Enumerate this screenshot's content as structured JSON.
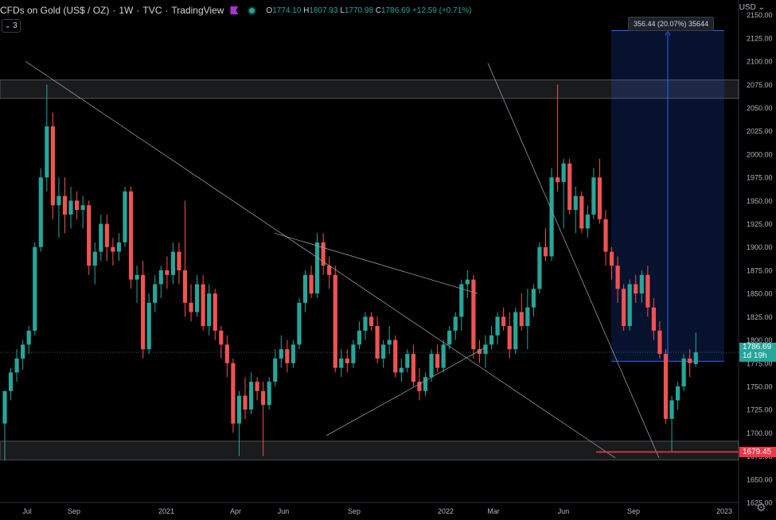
{
  "header": {
    "symbol": "CFDs on Gold (US$ / OZ)",
    "interval": "1W",
    "source": "TVC",
    "platform": "TradingView",
    "ohlc": {
      "o_key": "O",
      "o_val": "1774.10",
      "h_key": "H",
      "h_val": "1807.93",
      "l_key": "L",
      "l_val": "1770.98",
      "c_key": "C",
      "c_val": "1786.69",
      "change": "+12.59 (+0.71%)"
    }
  },
  "indicators_count": "3",
  "currency": "USD",
  "measure_label": "356.44 (20.07%) 35644",
  "last_price": "1786.69",
  "time_to_close": "1d 19h",
  "support_price": "1679.45",
  "colors": {
    "up": "#26a69a",
    "down": "#ef5350",
    "grid": "#1a1a1a",
    "support_line": "#f23645",
    "measure": "#2962ff"
  },
  "icons": [
    "flag-icon",
    "status-dot-icon",
    "chevron-down-icon",
    "gear-icon"
  ],
  "chart_data": {
    "type": "candlestick",
    "ylim": [
      1625,
      2160
    ],
    "y_ticks": [
      1625,
      1650,
      1675,
      1700,
      1725,
      1750,
      1775,
      1800,
      1825,
      1850,
      1875,
      1900,
      1925,
      1950,
      1975,
      2000,
      2025,
      2050,
      2075,
      2100,
      2125,
      2150
    ],
    "x_ticks": [
      "Jul",
      "Sep",
      "2021",
      "Apr",
      "Jun",
      "Sep",
      "2022",
      "Mar",
      "Jun",
      "Sep",
      "2023"
    ],
    "candles": [
      {
        "o": 1710,
        "h": 1745,
        "l": 1670,
        "c": 1745
      },
      {
        "o": 1745,
        "h": 1770,
        "l": 1735,
        "c": 1765
      },
      {
        "o": 1765,
        "h": 1790,
        "l": 1755,
        "c": 1780
      },
      {
        "o": 1780,
        "h": 1800,
        "l": 1768,
        "c": 1795
      },
      {
        "o": 1795,
        "h": 1815,
        "l": 1785,
        "c": 1810
      },
      {
        "o": 1810,
        "h": 1905,
        "l": 1805,
        "c": 1900
      },
      {
        "o": 1900,
        "h": 1985,
        "l": 1895,
        "c": 1975
      },
      {
        "o": 1975,
        "h": 2075,
        "l": 1960,
        "c": 2030
      },
      {
        "o": 2030,
        "h": 2045,
        "l": 1930,
        "c": 1945
      },
      {
        "o": 1945,
        "h": 1975,
        "l": 1910,
        "c": 1955
      },
      {
        "o": 1955,
        "h": 1975,
        "l": 1915,
        "c": 1935
      },
      {
        "o": 1935,
        "h": 1965,
        "l": 1920,
        "c": 1950
      },
      {
        "o": 1950,
        "h": 1960,
        "l": 1930,
        "c": 1940
      },
      {
        "o": 1940,
        "h": 1955,
        "l": 1920,
        "c": 1945
      },
      {
        "o": 1945,
        "h": 1950,
        "l": 1870,
        "c": 1880
      },
      {
        "o": 1880,
        "h": 1905,
        "l": 1860,
        "c": 1895
      },
      {
        "o": 1895,
        "h": 1935,
        "l": 1885,
        "c": 1925
      },
      {
        "o": 1925,
        "h": 1935,
        "l": 1885,
        "c": 1900
      },
      {
        "o": 1900,
        "h": 1910,
        "l": 1880,
        "c": 1895
      },
      {
        "o": 1895,
        "h": 1915,
        "l": 1885,
        "c": 1905
      },
      {
        "o": 1905,
        "h": 1965,
        "l": 1900,
        "c": 1960
      },
      {
        "o": 1960,
        "h": 1965,
        "l": 1855,
        "c": 1865
      },
      {
        "o": 1865,
        "h": 1880,
        "l": 1840,
        "c": 1870
      },
      {
        "o": 1870,
        "h": 1885,
        "l": 1780,
        "c": 1790
      },
      {
        "o": 1790,
        "h": 1850,
        "l": 1785,
        "c": 1840
      },
      {
        "o": 1840,
        "h": 1870,
        "l": 1830,
        "c": 1860
      },
      {
        "o": 1860,
        "h": 1880,
        "l": 1845,
        "c": 1875
      },
      {
        "o": 1875,
        "h": 1890,
        "l": 1855,
        "c": 1870
      },
      {
        "o": 1870,
        "h": 1905,
        "l": 1860,
        "c": 1895
      },
      {
        "o": 1895,
        "h": 1905,
        "l": 1860,
        "c": 1875
      },
      {
        "o": 1875,
        "h": 1950,
        "l": 1825,
        "c": 1840
      },
      {
        "o": 1840,
        "h": 1860,
        "l": 1820,
        "c": 1830
      },
      {
        "o": 1830,
        "h": 1870,
        "l": 1825,
        "c": 1860
      },
      {
        "o": 1860,
        "h": 1870,
        "l": 1810,
        "c": 1815
      },
      {
        "o": 1815,
        "h": 1860,
        "l": 1805,
        "c": 1850
      },
      {
        "o": 1850,
        "h": 1855,
        "l": 1800,
        "c": 1810
      },
      {
        "o": 1810,
        "h": 1815,
        "l": 1780,
        "c": 1795
      },
      {
        "o": 1795,
        "h": 1805,
        "l": 1760,
        "c": 1775
      },
      {
        "o": 1775,
        "h": 1780,
        "l": 1700,
        "c": 1710
      },
      {
        "o": 1710,
        "h": 1745,
        "l": 1675,
        "c": 1740
      },
      {
        "o": 1740,
        "h": 1760,
        "l": 1715,
        "c": 1725
      },
      {
        "o": 1725,
        "h": 1765,
        "l": 1720,
        "c": 1755
      },
      {
        "o": 1755,
        "h": 1760,
        "l": 1735,
        "c": 1745
      },
      {
        "o": 1745,
        "h": 1755,
        "l": 1675,
        "c": 1730
      },
      {
        "o": 1730,
        "h": 1760,
        "l": 1725,
        "c": 1755
      },
      {
        "o": 1755,
        "h": 1790,
        "l": 1750,
        "c": 1780
      },
      {
        "o": 1780,
        "h": 1805,
        "l": 1770,
        "c": 1790
      },
      {
        "o": 1790,
        "h": 1800,
        "l": 1765,
        "c": 1775
      },
      {
        "o": 1775,
        "h": 1800,
        "l": 1770,
        "c": 1795
      },
      {
        "o": 1795,
        "h": 1845,
        "l": 1790,
        "c": 1840
      },
      {
        "o": 1840,
        "h": 1875,
        "l": 1830,
        "c": 1870
      },
      {
        "o": 1870,
        "h": 1880,
        "l": 1845,
        "c": 1850
      },
      {
        "o": 1850,
        "h": 1915,
        "l": 1845,
        "c": 1905
      },
      {
        "o": 1905,
        "h": 1915,
        "l": 1870,
        "c": 1880
      },
      {
        "o": 1880,
        "h": 1890,
        "l": 1855,
        "c": 1870
      },
      {
        "o": 1870,
        "h": 1880,
        "l": 1765,
        "c": 1770
      },
      {
        "o": 1770,
        "h": 1790,
        "l": 1760,
        "c": 1780
      },
      {
        "o": 1780,
        "h": 1790,
        "l": 1765,
        "c": 1775
      },
      {
        "o": 1775,
        "h": 1800,
        "l": 1770,
        "c": 1795
      },
      {
        "o": 1795,
        "h": 1820,
        "l": 1790,
        "c": 1810
      },
      {
        "o": 1810,
        "h": 1830,
        "l": 1800,
        "c": 1825
      },
      {
        "o": 1825,
        "h": 1830,
        "l": 1810,
        "c": 1815
      },
      {
        "o": 1815,
        "h": 1825,
        "l": 1775,
        "c": 1780
      },
      {
        "o": 1780,
        "h": 1800,
        "l": 1770,
        "c": 1795
      },
      {
        "o": 1795,
        "h": 1815,
        "l": 1785,
        "c": 1800
      },
      {
        "o": 1800,
        "h": 1805,
        "l": 1760,
        "c": 1765
      },
      {
        "o": 1765,
        "h": 1780,
        "l": 1755,
        "c": 1770
      },
      {
        "o": 1770,
        "h": 1790,
        "l": 1765,
        "c": 1785
      },
      {
        "o": 1785,
        "h": 1795,
        "l": 1750,
        "c": 1755
      },
      {
        "o": 1755,
        "h": 1770,
        "l": 1735,
        "c": 1745
      },
      {
        "o": 1745,
        "h": 1765,
        "l": 1740,
        "c": 1760
      },
      {
        "o": 1760,
        "h": 1790,
        "l": 1755,
        "c": 1785
      },
      {
        "o": 1785,
        "h": 1795,
        "l": 1765,
        "c": 1770
      },
      {
        "o": 1770,
        "h": 1800,
        "l": 1765,
        "c": 1795
      },
      {
        "o": 1795,
        "h": 1815,
        "l": 1790,
        "c": 1810
      },
      {
        "o": 1810,
        "h": 1830,
        "l": 1800,
        "c": 1825
      },
      {
        "o": 1825,
        "h": 1865,
        "l": 1810,
        "c": 1860
      },
      {
        "o": 1860,
        "h": 1875,
        "l": 1845,
        "c": 1865
      },
      {
        "o": 1865,
        "h": 1870,
        "l": 1780,
        "c": 1790
      },
      {
        "o": 1790,
        "h": 1800,
        "l": 1775,
        "c": 1785
      },
      {
        "o": 1785,
        "h": 1805,
        "l": 1770,
        "c": 1795
      },
      {
        "o": 1795,
        "h": 1815,
        "l": 1790,
        "c": 1805
      },
      {
        "o": 1805,
        "h": 1830,
        "l": 1795,
        "c": 1825
      },
      {
        "o": 1825,
        "h": 1835,
        "l": 1810,
        "c": 1815
      },
      {
        "o": 1815,
        "h": 1830,
        "l": 1780,
        "c": 1790
      },
      {
        "o": 1790,
        "h": 1835,
        "l": 1785,
        "c": 1830
      },
      {
        "o": 1830,
        "h": 1850,
        "l": 1810,
        "c": 1815
      },
      {
        "o": 1815,
        "h": 1855,
        "l": 1790,
        "c": 1835
      },
      {
        "o": 1835,
        "h": 1860,
        "l": 1825,
        "c": 1855
      },
      {
        "o": 1855,
        "h": 1905,
        "l": 1850,
        "c": 1900
      },
      {
        "o": 1900,
        "h": 1920,
        "l": 1885,
        "c": 1890
      },
      {
        "o": 1890,
        "h": 1985,
        "l": 1885,
        "c": 1975
      },
      {
        "o": 1975,
        "h": 2075,
        "l": 1960,
        "c": 1970
      },
      {
        "o": 1970,
        "h": 1995,
        "l": 1920,
        "c": 1990
      },
      {
        "o": 1990,
        "h": 1995,
        "l": 1935,
        "c": 1940
      },
      {
        "o": 1940,
        "h": 1965,
        "l": 1915,
        "c": 1955
      },
      {
        "o": 1955,
        "h": 1960,
        "l": 1915,
        "c": 1920
      },
      {
        "o": 1920,
        "h": 1945,
        "l": 1910,
        "c": 1935
      },
      {
        "o": 1935,
        "h": 1985,
        "l": 1930,
        "c": 1975
      },
      {
        "o": 1975,
        "h": 1995,
        "l": 1925,
        "c": 1930
      },
      {
        "o": 1930,
        "h": 1940,
        "l": 1880,
        "c": 1895
      },
      {
        "o": 1895,
        "h": 1900,
        "l": 1865,
        "c": 1880
      },
      {
        "o": 1880,
        "h": 1890,
        "l": 1840,
        "c": 1855
      },
      {
        "o": 1855,
        "h": 1860,
        "l": 1810,
        "c": 1815
      },
      {
        "o": 1815,
        "h": 1865,
        "l": 1810,
        "c": 1860
      },
      {
        "o": 1860,
        "h": 1870,
        "l": 1840,
        "c": 1850
      },
      {
        "o": 1850,
        "h": 1875,
        "l": 1840,
        "c": 1870
      },
      {
        "o": 1870,
        "h": 1880,
        "l": 1825,
        "c": 1835
      },
      {
        "o": 1835,
        "h": 1845,
        "l": 1800,
        "c": 1810
      },
      {
        "o": 1810,
        "h": 1820,
        "l": 1780,
        "c": 1785
      },
      {
        "o": 1785,
        "h": 1790,
        "l": 1710,
        "c": 1715
      },
      {
        "o": 1715,
        "h": 1740,
        "l": 1680,
        "c": 1735
      },
      {
        "o": 1735,
        "h": 1755,
        "l": 1725,
        "c": 1750
      },
      {
        "o": 1750,
        "h": 1785,
        "l": 1745,
        "c": 1780
      },
      {
        "o": 1780,
        "h": 1790,
        "l": 1760,
        "c": 1775
      },
      {
        "o": 1774.1,
        "h": 1807.93,
        "l": 1770.98,
        "c": 1786.69
      }
    ]
  }
}
